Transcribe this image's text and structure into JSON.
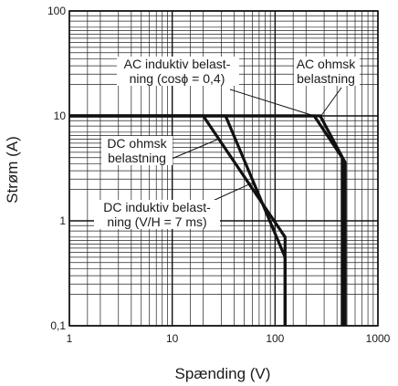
{
  "chart_data": {
    "type": "line",
    "xlabel": "Spænding (V)",
    "ylabel": "Strøm (A)",
    "x_scale": "log",
    "y_scale": "log",
    "xlim": [
      1,
      1000
    ],
    "ylim": [
      0.1,
      100
    ],
    "x_ticks": [
      "1",
      "10",
      "100",
      "1000"
    ],
    "y_ticks": [
      "0,1",
      "1",
      "10",
      "100"
    ],
    "grid": true,
    "series": [
      {
        "x": [
          1,
          20,
          125,
          125
        ],
        "y": [
          10,
          10,
          0.7,
          0.1
        ]
      },
      {
        "x": [
          1,
          33,
          125,
          125
        ],
        "y": [
          10,
          10,
          0.45,
          0.1
        ]
      },
      {
        "x": [
          1,
          240,
          450,
          450
        ],
        "y": [
          10,
          10,
          4,
          0.1
        ]
      },
      {
        "x": [
          1,
          275,
          480,
          480
        ],
        "y": [
          10,
          10,
          3.6,
          0.1
        ]
      }
    ],
    "annotations": [
      {
        "lines": [
          "AC induktiv belast-",
          "ning (cosϕ = 0,4)"
        ],
        "target": [
          240,
          10
        ]
      },
      {
        "lines": [
          "AC ohmsk",
          "belastning"
        ],
        "target": [
          280,
          10
        ]
      },
      {
        "lines": [
          "DC ohmsk",
          "belastning"
        ],
        "target": [
          28,
          6
        ]
      },
      {
        "lines": [
          "DC induktiv belast-",
          "ning (V/H = 7 ms)"
        ],
        "target": [
          60,
          2.3
        ]
      }
    ]
  }
}
